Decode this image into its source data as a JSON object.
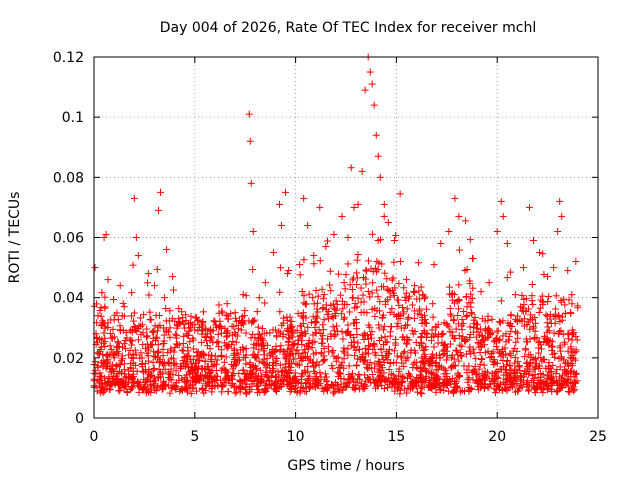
{
  "chart_data": {
    "type": "scatter",
    "title": "Day 004 of 2026, Rate Of TEC Index for receiver mchl",
    "xlabel": "GPS time / hours",
    "ylabel": "ROTI / TECUs",
    "xlim": [
      0,
      25
    ],
    "ylim": [
      0,
      0.12
    ],
    "x_ticks": [
      0,
      5,
      10,
      15,
      20,
      25
    ],
    "x_tick_labels": [
      "0",
      "5",
      "10",
      "15",
      "20",
      "25"
    ],
    "y_ticks": [
      0,
      0.02,
      0.04,
      0.06,
      0.08,
      0.1,
      0.12
    ],
    "y_tick_labels": [
      "0",
      "0.02",
      "0.04",
      "0.06",
      "0.08",
      "0.1",
      "0.12"
    ],
    "grid": true,
    "marker": "+",
    "color": "#ff0000",
    "series": [
      {
        "name": "ROTI",
        "points": [
          [
            0.05,
            0.05
          ],
          [
            0.1,
            0.028
          ],
          [
            0.2,
            0.034
          ],
          [
            0.3,
            0.015
          ],
          [
            0.4,
            0.031
          ],
          [
            0.5,
            0.06
          ],
          [
            0.6,
            0.061
          ],
          [
            0.7,
            0.046
          ],
          [
            0.8,
            0.024
          ],
          [
            1.0,
            0.02
          ],
          [
            1.3,
            0.044
          ],
          [
            1.5,
            0.037
          ],
          [
            1.8,
            0.029
          ],
          [
            2.0,
            0.073
          ],
          [
            2.1,
            0.06
          ],
          [
            2.2,
            0.054
          ],
          [
            2.4,
            0.031
          ],
          [
            2.7,
            0.048
          ],
          [
            3.0,
            0.044
          ],
          [
            3.2,
            0.069
          ],
          [
            3.3,
            0.075
          ],
          [
            3.5,
            0.04
          ],
          [
            3.6,
            0.056
          ],
          [
            3.9,
            0.047
          ],
          [
            4.2,
            0.033
          ],
          [
            4.6,
            0.028
          ],
          [
            5.0,
            0.031
          ],
          [
            5.4,
            0.029
          ],
          [
            5.8,
            0.027
          ],
          [
            6.2,
            0.03
          ],
          [
            6.6,
            0.038
          ],
          [
            7.0,
            0.035
          ],
          [
            7.4,
            0.041
          ],
          [
            7.7,
            0.101
          ],
          [
            7.75,
            0.092
          ],
          [
            7.8,
            0.078
          ],
          [
            7.9,
            0.062
          ],
          [
            8.2,
            0.04
          ],
          [
            8.5,
            0.045
          ],
          [
            8.9,
            0.055
          ],
          [
            9.2,
            0.071
          ],
          [
            9.3,
            0.064
          ],
          [
            9.5,
            0.075
          ],
          [
            9.6,
            0.048
          ],
          [
            9.8,
            0.03
          ],
          [
            10.2,
            0.051
          ],
          [
            10.4,
            0.073
          ],
          [
            10.6,
            0.064
          ],
          [
            10.9,
            0.054
          ],
          [
            11.2,
            0.07
          ],
          [
            11.5,
            0.057
          ],
          [
            11.9,
            0.061
          ],
          [
            12.3,
            0.067
          ],
          [
            12.6,
            0.06
          ],
          [
            12.9,
            0.07
          ],
          [
            13.1,
            0.071
          ],
          [
            13.3,
            0.082
          ],
          [
            13.45,
            0.109
          ],
          [
            13.6,
            0.12
          ],
          [
            13.7,
            0.115
          ],
          [
            13.8,
            0.111
          ],
          [
            13.9,
            0.104
          ],
          [
            14.0,
            0.094
          ],
          [
            14.1,
            0.087
          ],
          [
            14.2,
            0.08
          ],
          [
            14.4,
            0.071
          ],
          [
            14.6,
            0.065
          ],
          [
            14.9,
            0.059
          ],
          [
            15.2,
            0.052
          ],
          [
            15.5,
            0.046
          ],
          [
            15.9,
            0.044
          ],
          [
            16.3,
            0.041
          ],
          [
            16.8,
            0.038
          ],
          [
            17.2,
            0.058
          ],
          [
            17.6,
            0.062
          ],
          [
            17.9,
            0.073
          ],
          [
            18.1,
            0.067
          ],
          [
            18.4,
            0.049
          ],
          [
            18.8,
            0.053
          ],
          [
            19.2,
            0.042
          ],
          [
            19.6,
            0.045
          ],
          [
            20.0,
            0.062
          ],
          [
            20.2,
            0.072
          ],
          [
            20.3,
            0.067
          ],
          [
            20.5,
            0.058
          ],
          [
            20.9,
            0.041
          ],
          [
            21.3,
            0.05
          ],
          [
            21.6,
            0.07
          ],
          [
            21.8,
            0.059
          ],
          [
            22.1,
            0.055
          ],
          [
            22.5,
            0.047
          ],
          [
            22.8,
            0.05
          ],
          [
            23.0,
            0.062
          ],
          [
            23.1,
            0.072
          ],
          [
            23.2,
            0.067
          ],
          [
            23.5,
            0.049
          ],
          [
            23.7,
            0.041
          ],
          [
            23.9,
            0.052
          ]
        ]
      }
    ]
  }
}
